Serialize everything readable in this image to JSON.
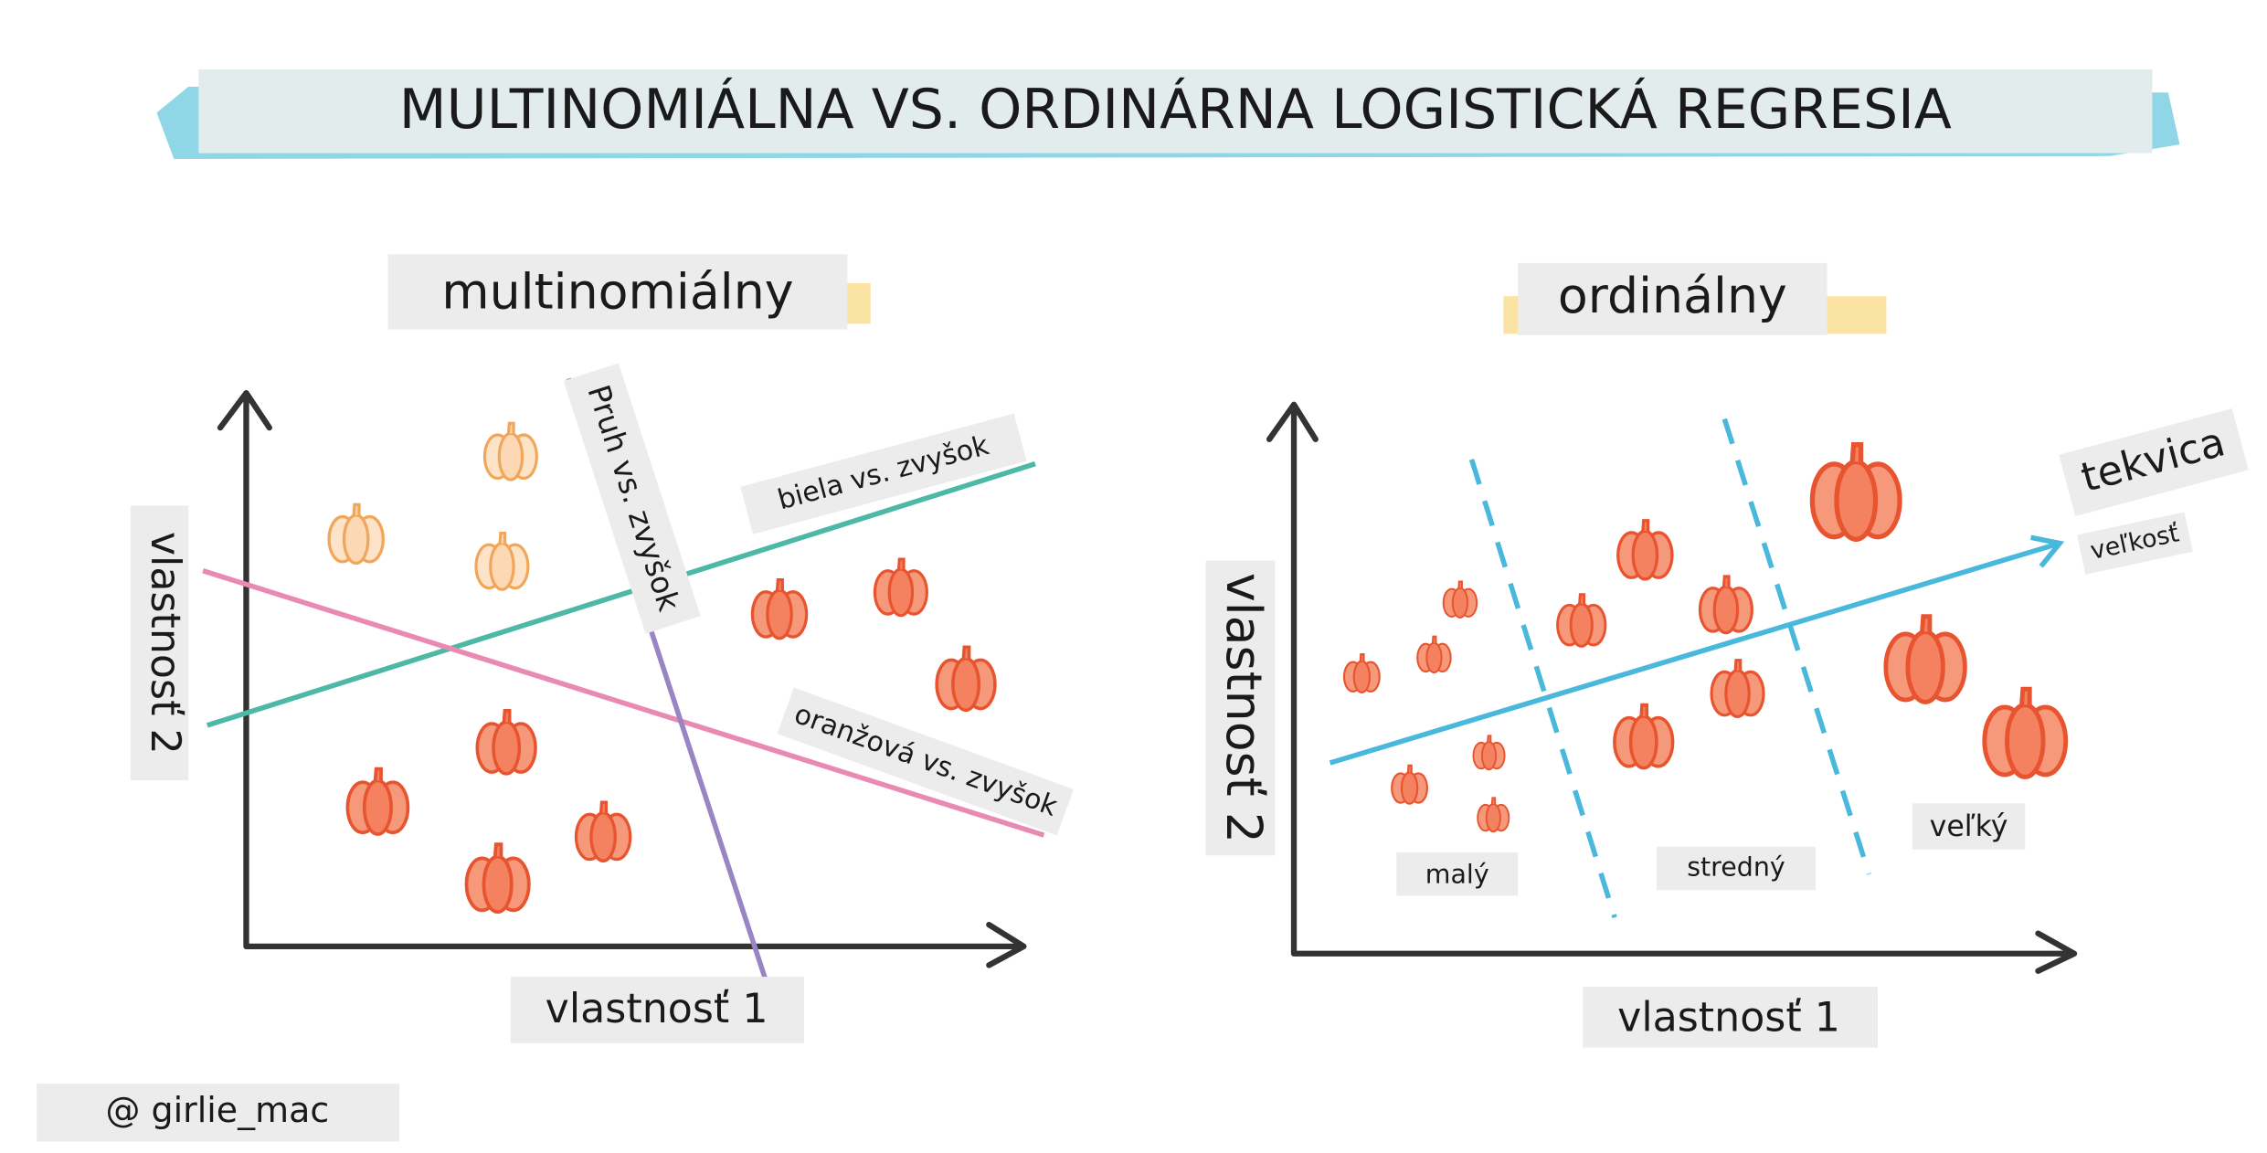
{
  "title": "MULTINOMIÁLNA VS. ORDINÁRNA LOGISTICKÁ REGRESIA",
  "multinomial": {
    "title": "multinomiálny",
    "y_axis": "vlastnosť 2",
    "x_axis": "vlastnosť 1",
    "boundaries": [
      "Pruh vs. zvyšok",
      "biela vs. zvyšok",
      "oranžová vs. zvyšok"
    ]
  },
  "ordinal": {
    "title": "ordinálny",
    "y_axis": "vlastnosť 2",
    "x_axis": "vlastnosť 1",
    "axis_label": "tekvica",
    "axis_sublabel": "veľkosť",
    "classes": [
      "malý",
      "stredný",
      "veľký"
    ]
  },
  "credit": "@ girlie_mac"
}
